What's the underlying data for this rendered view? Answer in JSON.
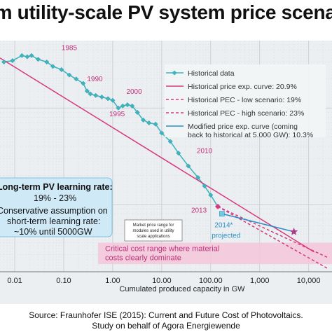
{
  "page": {
    "title": "rm utility-scale PV system price scenarios",
    "source_line1": "Source: Fraunhofer ISE (2015): Current and Future Cost of Photovoltaics.",
    "source_line2": "Study on behalf of Agora Energiewende"
  },
  "chart_data": {
    "type": "line",
    "scale": "log-log",
    "title": "",
    "xlabel": "Cumulated produced capacity in GW",
    "ylabel": "",
    "xlim": [
      0.005,
      30000
    ],
    "ylim": [
      0.2,
      50
    ],
    "x_ticks": [
      {
        "v": 0.01,
        "label": "0.01"
      },
      {
        "v": 0.1,
        "label": "0.10"
      },
      {
        "v": 1,
        "label": "1.00"
      },
      {
        "v": 10,
        "label": "10.00"
      },
      {
        "v": 100,
        "label": "100.00"
      },
      {
        "v": 1000,
        "label": "1,000"
      },
      {
        "v": 10000,
        "label": "10,000"
      }
    ],
    "grid": true,
    "legend_position": "top-right",
    "legend": [
      {
        "label": "Historical data",
        "style": "line-diamond",
        "color": "#3fb4bf"
      },
      {
        "label": "Historical price exp. curve: 20.9%",
        "style": "solid",
        "color": "#d63a7f"
      },
      {
        "label": "Historical PEC - low scenario: 19%",
        "style": "dashed",
        "color": "#d63a7f"
      },
      {
        "label": "Historical PEC - high scenario: 23%",
        "style": "dashed",
        "color": "#d63a7f"
      },
      {
        "label": "Modified price exp. curve (coming",
        "label2": "back to historical at 5.000 GW): 10.3%",
        "style": "solid",
        "color": "#2a8fc6"
      }
    ],
    "series": [
      {
        "name": "Historical data",
        "color": "#3fb4bf",
        "points": [
          [
            0.006,
            30
          ],
          [
            0.009,
            31
          ],
          [
            0.014,
            35
          ],
          [
            0.018,
            34
          ],
          [
            0.022,
            35
          ],
          [
            0.03,
            32
          ],
          [
            0.045,
            30
          ],
          [
            0.06,
            27
          ],
          [
            0.09,
            25
          ],
          [
            0.13,
            22
          ],
          [
            0.18,
            20
          ],
          [
            0.25,
            18
          ],
          [
            0.3,
            15
          ],
          [
            0.35,
            14
          ],
          [
            0.45,
            13.5
          ],
          [
            0.6,
            13
          ],
          [
            0.8,
            12.5
          ],
          [
            1.0,
            12
          ],
          [
            1.3,
            10
          ],
          [
            1.6,
            10.5
          ],
          [
            2.0,
            10.8
          ],
          [
            2.5,
            10.5
          ],
          [
            3.2,
            9
          ],
          [
            4.2,
            7.5
          ],
          [
            5.5,
            7
          ],
          [
            7.5,
            6.8
          ],
          [
            10,
            5.5
          ],
          [
            15,
            4.5
          ],
          [
            22,
            3.4
          ],
          [
            35,
            2.5
          ],
          [
            55,
            1.9
          ],
          [
            75,
            1.55
          ],
          [
            100,
            1.25
          ],
          [
            140,
            0.95
          ]
        ]
      },
      {
        "name": "Historical price exp. curve: 20.9%",
        "color": "#d63a7f",
        "dash": "",
        "points": [
          [
            0.005,
            33
          ],
          [
            13000,
            0.32
          ]
        ]
      },
      {
        "name": "Historical PEC - low scenario: 19%",
        "color": "#d63a7f",
        "dash": "4,3",
        "points": [
          [
            140,
            0.95
          ],
          [
            25000,
            0.28
          ]
        ]
      },
      {
        "name": "Historical PEC - high scenario: 23%",
        "color": "#d63a7f",
        "dash": "4,3",
        "points": [
          [
            140,
            0.95
          ],
          [
            25000,
            0.215
          ]
        ]
      },
      {
        "name": "Modified price exp. curve (coming back to historical at 5.000 GW): 10.3%",
        "color": "#2a8fc6",
        "dash": "",
        "points": [
          [
            170,
            0.8
          ],
          [
            5000,
            0.52
          ]
        ]
      }
    ],
    "markers": [
      {
        "name": "2014 projected",
        "x": 170,
        "y": 0.8,
        "shape": "square",
        "color": "#6ecbe0"
      },
      {
        "name": "2013",
        "x": 140,
        "y": 0.95,
        "shape": "diamond",
        "color": "#d63a7f"
      },
      {
        "name": "5000 GW",
        "x": 5000,
        "y": 0.52,
        "shape": "star",
        "color": "#b03a8a"
      }
    ],
    "year_labels": [
      {
        "text": "1985",
        "x": 0.09,
        "y": 40,
        "color": "#c0307a"
      },
      {
        "text": "1990",
        "x": 0.3,
        "y": 19,
        "color": "#c0307a"
      },
      {
        "text": "1995",
        "x": 0.85,
        "y": 8.2,
        "color": "#c0307a"
      },
      {
        "text": "2000",
        "x": 1.9,
        "y": 14,
        "color": "#c0307a"
      },
      {
        "text": "2010",
        "x": 52,
        "y": 3.4,
        "color": "#c0307a"
      },
      {
        "text": "2013",
        "x": 40,
        "y": 0.82,
        "color": "#c0307a"
      },
      {
        "text": "2014*",
        "x": 120,
        "y": 0.58,
        "color": "#2a8fc6"
      },
      {
        "text": "projected",
        "x": 105,
        "y": 0.45,
        "color": "#2a8fc6"
      }
    ],
    "critical_band": {
      "y_range": [
        0.24,
        0.4
      ],
      "label1": "Critical cost range where material",
      "label2": "costs clearly dominate",
      "fill": "#f5c7da",
      "text_color": "#c0307a"
    },
    "learning_box": {
      "line1": "Long-term PV learning rate:",
      "line2": "19% - 23%",
      "line3": "Conservative assumption on",
      "line4": "short-term learning rate:",
      "line5": "~10% until 5000GW",
      "fill": "#cfe9f7",
      "border": "#2a8fc6"
    },
    "market_note": {
      "line1": "Market price range for",
      "line2": "modules used in utility",
      "line3": "scale applications"
    }
  }
}
